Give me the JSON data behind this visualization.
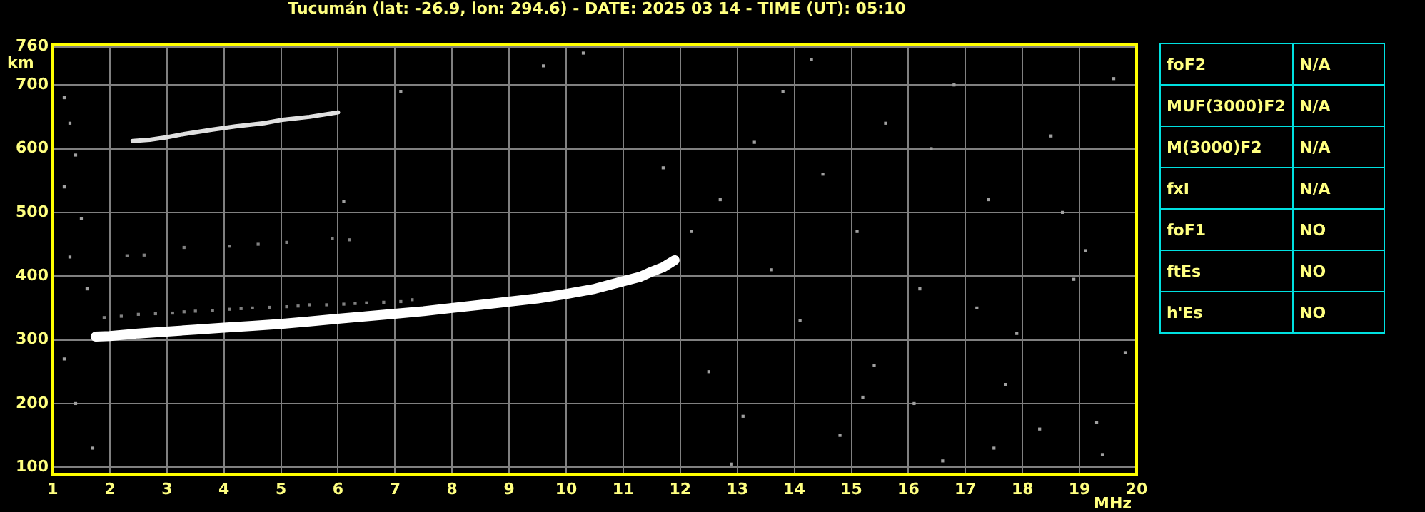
{
  "chart_data": [
    {
      "type": "scatter",
      "title": "Tucumán (lat: -26.9, lon: 294.6) - DATE: 2025 03 14 - TIME (UT): 05:10",
      "xlabel": "MHz",
      "ylabel": "km",
      "xlim": [
        1,
        20
      ],
      "xticks": [
        1,
        2,
        3,
        4,
        5,
        6,
        7,
        8,
        9,
        10,
        11,
        12,
        13,
        14,
        15,
        16,
        17,
        18,
        19,
        20
      ],
      "ylim": [
        88,
        764
      ],
      "yticks": [
        100,
        200,
        300,
        400,
        500,
        600,
        700,
        760
      ],
      "grid": true,
      "legend": false,
      "marker": "square",
      "series": [
        {
          "type": "line",
          "marker": "none",
          "color": "#ffffff",
          "x": [
            1.75,
            2,
            2.5,
            3,
            3.5,
            4,
            4.5,
            5,
            5.5,
            6,
            6.5,
            7,
            7.5,
            8,
            8.5,
            9,
            9.5,
            10,
            10.5,
            11,
            11.3,
            11.5,
            11.7,
            11.9
          ],
          "values": [
            305,
            306,
            310,
            313,
            316,
            319,
            322,
            325,
            329,
            333,
            337,
            341,
            345,
            350,
            355,
            360,
            365,
            372,
            380,
            392,
            399,
            407,
            414,
            425
          ]
        },
        {
          "type": "line",
          "marker": "none",
          "color": "#e0e0e0",
          "x": [
            2.4,
            2.7,
            3,
            3.3,
            3.8,
            4.2,
            4.7,
            5,
            5.5,
            6
          ],
          "values": [
            612,
            614,
            618,
            623,
            630,
            635,
            640,
            645,
            650,
            657
          ]
        },
        {
          "type": "scatter",
          "color": "#808080",
          "x": [
            1.9,
            2.2,
            2.5,
            2.8,
            3.1,
            3.3,
            3.5,
            3.8,
            4.1,
            4.3,
            4.5,
            4.8,
            5.1,
            5.3,
            5.5,
            5.8,
            6.1,
            6.3,
            6.5,
            6.8,
            7.1,
            7.3,
            2.3,
            2.6,
            3.3,
            4.1,
            4.6,
            5.1,
            5.9,
            6.2
          ],
          "values": [
            335,
            337,
            340,
            341,
            342,
            344,
            345,
            346,
            348,
            349,
            350,
            351,
            352,
            353,
            355,
            355,
            356,
            357,
            358,
            359,
            360,
            363,
            432,
            433,
            445,
            447,
            450,
            453,
            459,
            457
          ]
        },
        {
          "type": "scatter",
          "color": "#a0a0a0",
          "x": [
            1.2,
            1.3,
            1.4,
            1.2,
            1.5,
            1.3,
            1.6,
            1.2,
            1.4,
            1.7,
            6.1,
            7.1,
            9.6,
            10.3,
            11.7,
            12.2,
            12.7,
            13.3,
            13.8,
            14.5,
            15.1,
            15.6,
            16.2,
            16.8,
            17.4,
            17.9,
            18.5,
            19.1,
            19.6,
            12.5,
            13.1,
            14.1,
            14.8,
            15.4,
            16.1,
            16.6,
            17.2,
            17.7,
            18.3,
            18.9,
            19.4,
            19.8,
            12.9,
            13.6,
            14.3,
            15.2,
            16.4,
            17.5,
            18.7,
            19.3
          ],
          "values": [
            680,
            640,
            590,
            540,
            490,
            430,
            380,
            270,
            200,
            130,
            517,
            690,
            730,
            750,
            570,
            470,
            520,
            610,
            690,
            560,
            470,
            640,
            380,
            700,
            520,
            310,
            620,
            440,
            710,
            250,
            180,
            330,
            150,
            260,
            200,
            110,
            350,
            230,
            160,
            395,
            120,
            280,
            105,
            410,
            740,
            210,
            600,
            130,
            500,
            170
          ]
        }
      ]
    },
    {
      "type": "other",
      "annotations": [
        "foF2",
        "N/A",
        "MUF(3000)F2",
        "N/A",
        "M(3000)F2",
        "N/A",
        "fxI",
        "N/A",
        "foF1",
        "NO",
        "ftEs",
        "NO",
        "h'Es",
        "NO"
      ]
    }
  ]
}
